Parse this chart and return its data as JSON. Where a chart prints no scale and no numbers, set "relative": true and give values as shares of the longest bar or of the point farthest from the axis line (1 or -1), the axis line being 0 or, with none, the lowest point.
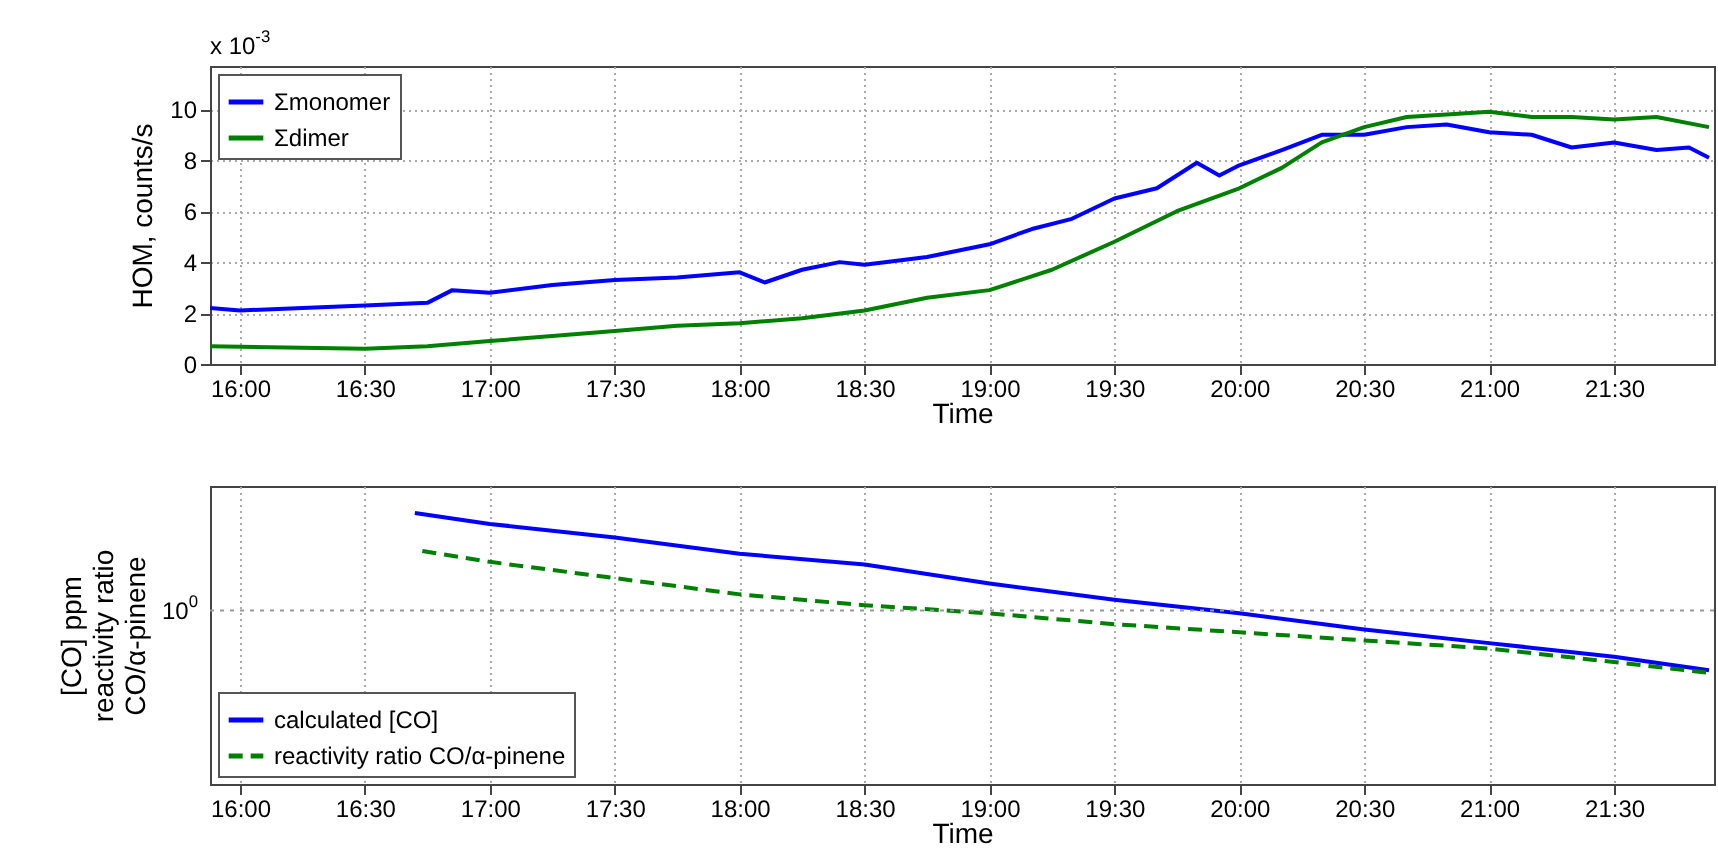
{
  "chart_data": [
    {
      "type": "line",
      "xlabel": "Time",
      "ylabel": "HOM, counts/s",
      "annotations": [
        "x 10$^{-3}$"
      ],
      "xlim": [
        15.88,
        21.9
      ],
      "xticks": [
        {
          "value": 16,
          "label": "16:00"
        },
        {
          "value": 16.5,
          "label": "16:30"
        },
        {
          "value": 17,
          "label": "17:00"
        },
        {
          "value": 17.5,
          "label": "17:30"
        },
        {
          "value": 18,
          "label": "18:00"
        },
        {
          "value": 18.5,
          "label": "18:30"
        },
        {
          "value": 19,
          "label": "19:00"
        },
        {
          "value": 19.5,
          "label": "19:30"
        },
        {
          "value": 20,
          "label": "20:00"
        },
        {
          "value": 20.5,
          "label": "20:30"
        },
        {
          "value": 21,
          "label": "21:00"
        },
        {
          "value": 21.5,
          "label": "21:30"
        }
      ],
      "ylim": [
        0,
        11.7
      ],
      "yticks": [
        0,
        2,
        4,
        6,
        8,
        10
      ],
      "grid": true,
      "legend": "top left",
      "series": [
        {
          "name": "Σmonomer",
          "color": "#0000ff",
          "line_style": "solid",
          "x": [
            15.88,
            16.0,
            16.25,
            16.5,
            16.75,
            16.85,
            17.0,
            17.25,
            17.5,
            17.75,
            18.0,
            18.1,
            18.25,
            18.4,
            18.5,
            18.75,
            19.0,
            19.17,
            19.33,
            19.5,
            19.67,
            19.83,
            19.92,
            20.0,
            20.17,
            20.33,
            20.5,
            20.67,
            20.83,
            21.0,
            21.17,
            21.33,
            21.5,
            21.67,
            21.8,
            21.88
          ],
          "values": [
            2.2,
            2.1,
            2.2,
            2.3,
            2.4,
            2.9,
            2.8,
            3.1,
            3.3,
            3.4,
            3.6,
            3.2,
            3.7,
            4.0,
            3.9,
            4.2,
            4.7,
            5.3,
            5.7,
            6.5,
            6.9,
            7.9,
            7.4,
            7.8,
            8.4,
            9.0,
            9.0,
            9.3,
            9.4,
            9.1,
            9.0,
            8.5,
            8.7,
            8.4,
            8.5,
            8.1
          ]
        },
        {
          "name": "Σdimer",
          "color": "#008000",
          "line_style": "solid",
          "x": [
            15.88,
            16.5,
            16.75,
            17.0,
            17.25,
            17.5,
            17.75,
            18.0,
            18.25,
            18.5,
            18.75,
            19.0,
            19.25,
            19.5,
            19.75,
            20.0,
            20.17,
            20.33,
            20.5,
            20.67,
            20.83,
            21.0,
            21.17,
            21.33,
            21.5,
            21.67,
            21.88
          ],
          "values": [
            0.7,
            0.6,
            0.7,
            0.9,
            1.1,
            1.3,
            1.5,
            1.6,
            1.8,
            2.1,
            2.6,
            2.9,
            3.7,
            4.8,
            6.0,
            6.9,
            7.7,
            8.7,
            9.3,
            9.7,
            9.8,
            9.9,
            9.7,
            9.7,
            9.6,
            9.7,
            9.3
          ]
        }
      ]
    },
    {
      "type": "line",
      "xlabel": "Time",
      "ylabel": "[CO] ppm\nreactivity ratio\nCO/α-pinene",
      "relative": true,
      "xlim": [
        15.88,
        21.9
      ],
      "xticks": [
        {
          "value": 16,
          "label": "16:00"
        },
        {
          "value": 16.5,
          "label": "16:30"
        },
        {
          "value": 17,
          "label": "17:00"
        },
        {
          "value": 17.5,
          "label": "17:30"
        },
        {
          "value": 18,
          "label": "18:00"
        },
        {
          "value": 18.5,
          "label": "18:30"
        },
        {
          "value": 19,
          "label": "19:00"
        },
        {
          "value": 19.5,
          "label": "19:30"
        },
        {
          "value": 20,
          "label": "20:00"
        },
        {
          "value": 20.5,
          "label": "20:30"
        },
        {
          "value": 21,
          "label": "21:00"
        },
        {
          "value": 21.5,
          "label": "21:30"
        }
      ],
      "grid": "x",
      "legend": "bottom left",
      "annotations": [
        "10$^{0}$"
      ],
      "ref_lines": [
        {
          "axis": "y",
          "value": 0.64,
          "color": "#999999",
          "line_style": "dotted"
        }
      ],
      "series": [
        {
          "name": "calculated [CO]",
          "color": "#0000ff",
          "line_style": "solid",
          "x": [
            16.7,
            17.0,
            17.5,
            18.0,
            18.5,
            19.0,
            19.5,
            20.0,
            20.5,
            21.0,
            21.5,
            21.88
          ],
          "values": [
            1.0,
            0.96,
            0.91,
            0.85,
            0.81,
            0.74,
            0.68,
            0.63,
            0.57,
            0.52,
            0.47,
            0.42
          ]
        },
        {
          "name": "reactivity ratio CO/α-pinene",
          "color": "#008000",
          "line_style": "dashed",
          "x": [
            16.73,
            17.0,
            17.5,
            18.0,
            18.5,
            19.0,
            19.5,
            20.0,
            20.5,
            21.0,
            21.5,
            21.88
          ],
          "values": [
            0.86,
            0.82,
            0.76,
            0.7,
            0.66,
            0.63,
            0.59,
            0.56,
            0.53,
            0.5,
            0.45,
            0.41
          ]
        }
      ]
    }
  ]
}
